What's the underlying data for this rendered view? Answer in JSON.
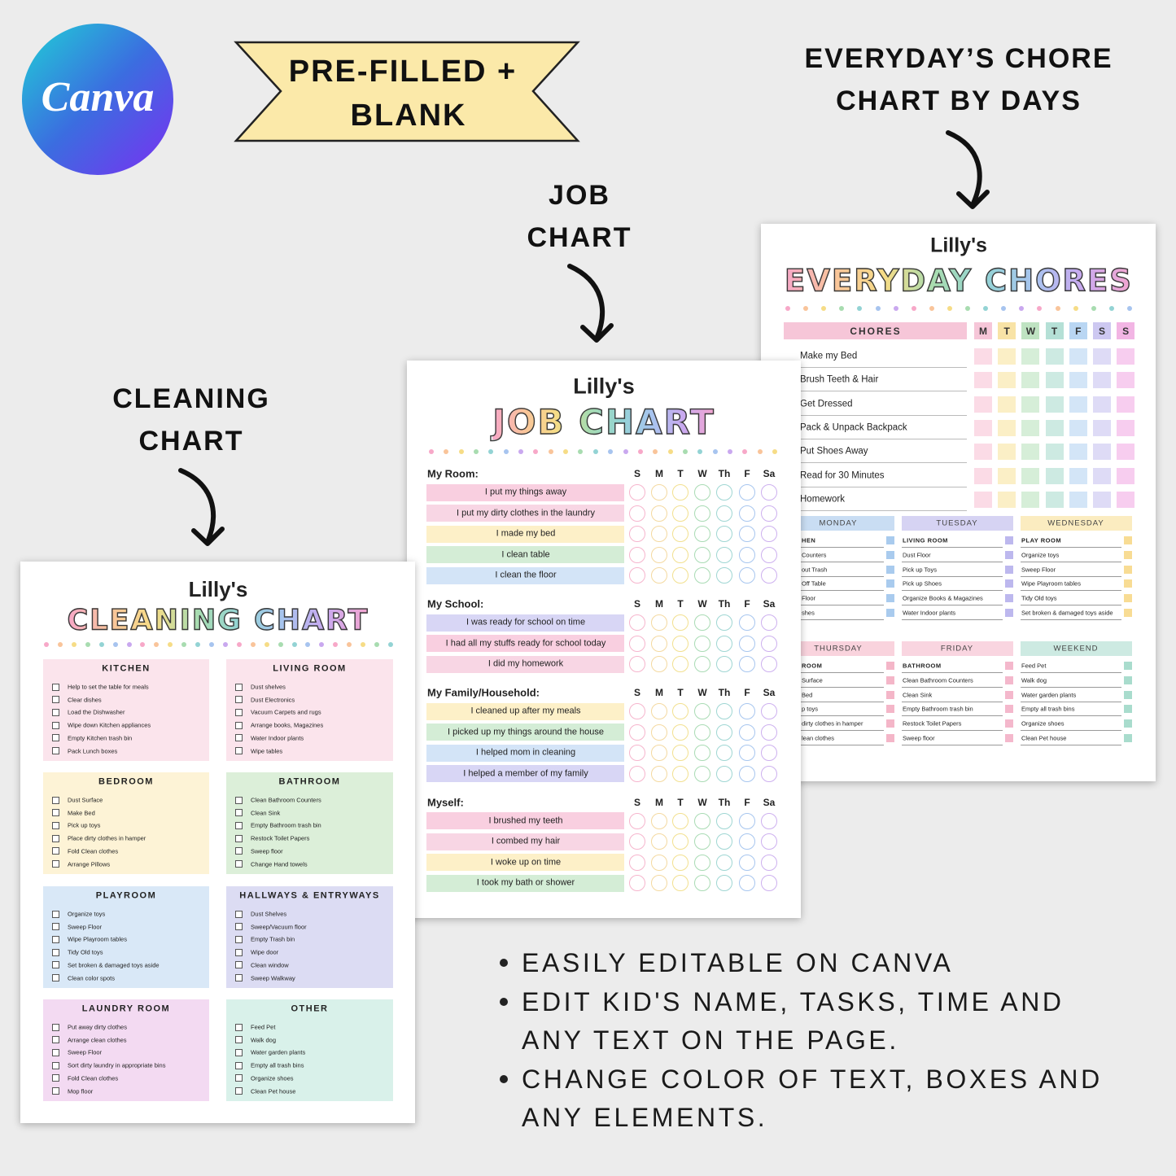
{
  "logo": "Canva",
  "banner": [
    "PRE-FILLED +",
    "BLANK"
  ],
  "headings": {
    "everyday": [
      "EVERYDAY’S CHORE",
      "CHART BY DAYS"
    ],
    "job": [
      "JOB",
      "CHART"
    ],
    "cleaning": [
      "CLEANING",
      "CHART"
    ]
  },
  "features": [
    [
      "EASILY EDITABLE ON CANVA"
    ],
    [
      "EDIT KID'S NAME, TASKS, TIME AND",
      "ANY TEXT ON THE PAGE."
    ],
    [
      "CHANGE COLOR OF TEXT, BOXES AND",
      "ANY ELEMENTS."
    ]
  ],
  "everyday": {
    "name": "Lilly's",
    "title": "EVERYDAY CHORES",
    "chores_header": "CHORES",
    "days": [
      "M",
      "T",
      "W",
      "T",
      "F",
      "S",
      "S"
    ],
    "chores": [
      "Make my Bed",
      "Brush Teeth & Hair",
      "Get Dressed",
      "Pack & Unpack Backpack",
      "Put Shoes Away",
      "Read for 30 Minutes",
      "Homework"
    ],
    "lists": [
      {
        "day": "MONDAY",
        "heading": "HEN",
        "items": [
          "Counters",
          "out Trash",
          "Off Table",
          "Floor",
          "shes"
        ]
      },
      {
        "day": "TUESDAY",
        "heading": "LIVING ROOM",
        "items": [
          "Dust Floor",
          "Pick up Toys",
          "Pick up Shoes",
          "Organize Books & Magazines",
          "Water Indoor plants"
        ]
      },
      {
        "day": "WEDNESDAY",
        "heading": "PLAY ROOM",
        "items": [
          "Organize toys",
          "Sweep Floor",
          "Wipe Playroom tables",
          "Tidy Old toys",
          "Set broken & damaged toys aside"
        ]
      },
      {
        "day": "THURSDAY",
        "heading": "ROOM",
        "items": [
          "Surface",
          "Bed",
          "p toys",
          "dirty clothes in hamper",
          "lean clothes"
        ]
      },
      {
        "day": "FRIDAY",
        "heading": "BATHROOM",
        "items": [
          "Clean Bathroom Counters",
          "Clean Sink",
          "Empty Bathroom trash bin",
          "Restock Toilet Papers",
          "Sweep floor"
        ]
      },
      {
        "day": "WEEKEND",
        "items": [
          "Feed Pet",
          "Walk dog",
          "Water garden plants",
          "Empty all trash bins",
          "Organize shoes",
          "Clean Pet house"
        ]
      }
    ]
  },
  "job": {
    "name": "Lilly's",
    "title": "JOB CHART",
    "days": [
      "S",
      "M",
      "T",
      "W",
      "Th",
      "F",
      "Sa"
    ],
    "sections": [
      {
        "title": "My Room:",
        "tasks": [
          "I put my things away",
          "I put my dirty clothes in the laundry",
          "I made my bed",
          "I clean table",
          "I clean the floor"
        ]
      },
      {
        "title": "My School:",
        "tasks": [
          "I was ready for school on time",
          "I had all my stuffs ready for school today",
          "I did my homework"
        ]
      },
      {
        "title": "My Family/Household:",
        "tasks": [
          "I cleaned up after my meals",
          "I picked up my things around the house",
          "I helped mom in cleaning",
          "I helped a member of my family"
        ]
      },
      {
        "title": "Myself:",
        "tasks": [
          "I brushed my teeth",
          "I combed my hair",
          "I woke up on time",
          "I took my bath or shower"
        ]
      }
    ]
  },
  "cleaning": {
    "name": "Lilly's",
    "title": "CLEANING CHART",
    "sections": [
      {
        "title": "KITCHEN",
        "items": [
          "Help to set the table for meals",
          "Clear dishes",
          "Load the Dishwasher",
          "Wipe down Kitchen appliances",
          "Empty Kitchen trash bin",
          "Pack Lunch boxes"
        ]
      },
      {
        "title": "LIVING ROOM",
        "items": [
          "Dust shelves",
          "Dust Electronics",
          "Vacuum Carpets and rugs",
          "Arrange books, Magazines",
          "Water Indoor plants",
          "Wipe tables"
        ]
      },
      {
        "title": "BEDROOM",
        "items": [
          "Dust Surface",
          "Make Bed",
          "Pick up toys",
          "Place dirty clothes in hamper",
          "Fold Clean clothes",
          "Arrange Pillows"
        ]
      },
      {
        "title": "BATHROOM",
        "items": [
          "Clean Bathroom Counters",
          "Clean Sink",
          "Empty Bathroom trash bin",
          "Restock Toilet Papers",
          "Sweep floor",
          "Change Hand towels"
        ]
      },
      {
        "title": "PLAYROOM",
        "items": [
          "Organize toys",
          "Sweep Floor",
          "Wipe Playroom tables",
          "Tidy Old toys",
          "Set broken & damaged toys aside",
          "Clean color spots"
        ]
      },
      {
        "title": "HALLWAYS & ENTRYWAYS",
        "items": [
          "Dust Shelves",
          "Sweep/Vacuum floor",
          "Empty Trash bin",
          "Wipe door",
          "Clean window",
          "Sweep Walkway"
        ]
      },
      {
        "title": "LAUNDRY ROOM",
        "items": [
          "Put away dirty clothes",
          "Arrange clean clothes",
          "Sweep Floor",
          "Sort dirty laundry in appropriate bins",
          "Fold Clean clothes",
          "Mop floor"
        ]
      },
      {
        "title": "OTHER",
        "items": [
          "Feed Pet",
          "Walk dog",
          "Water garden plants",
          "Empty all trash bins",
          "Organize shoes",
          "Clean Pet house"
        ]
      }
    ]
  }
}
